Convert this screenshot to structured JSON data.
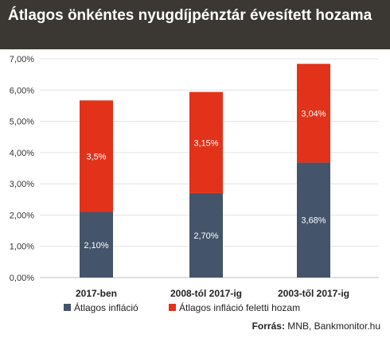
{
  "chart_data": {
    "type": "bar",
    "stacked": true,
    "title": "Átlagos önkéntes nyugdíjpénztár évesített hozama",
    "categories": [
      "2017-ben",
      "2008-tól 2017-ig",
      "2003-től 2017-ig"
    ],
    "series": [
      {
        "name": "Átlagos infláció",
        "color": "#44546a",
        "values": [
          2.1,
          2.7,
          3.68
        ],
        "labels": [
          "2,10%",
          "2,70%",
          "3,68%"
        ]
      },
      {
        "name": "Átlagos infláció feletti hozam",
        "color": "#e2321a",
        "values": [
          3.57,
          3.24,
          3.16
        ],
        "labels": [
          "3,5%",
          "3,15%",
          "3,04%"
        ]
      }
    ],
    "ylim": [
      0,
      7
    ],
    "yticks": [
      0,
      1,
      2,
      3,
      4,
      5,
      6,
      7
    ],
    "ytick_labels": [
      "0,00%",
      "1,00%",
      "2,00%",
      "3,00%",
      "4,00%",
      "5,00%",
      "6,00%",
      "7,00%"
    ],
    "grid": true,
    "legend_position": "bottom-left"
  },
  "source": {
    "label": "Forrás:",
    "text": "MNB, Bankmonitor.hu"
  }
}
